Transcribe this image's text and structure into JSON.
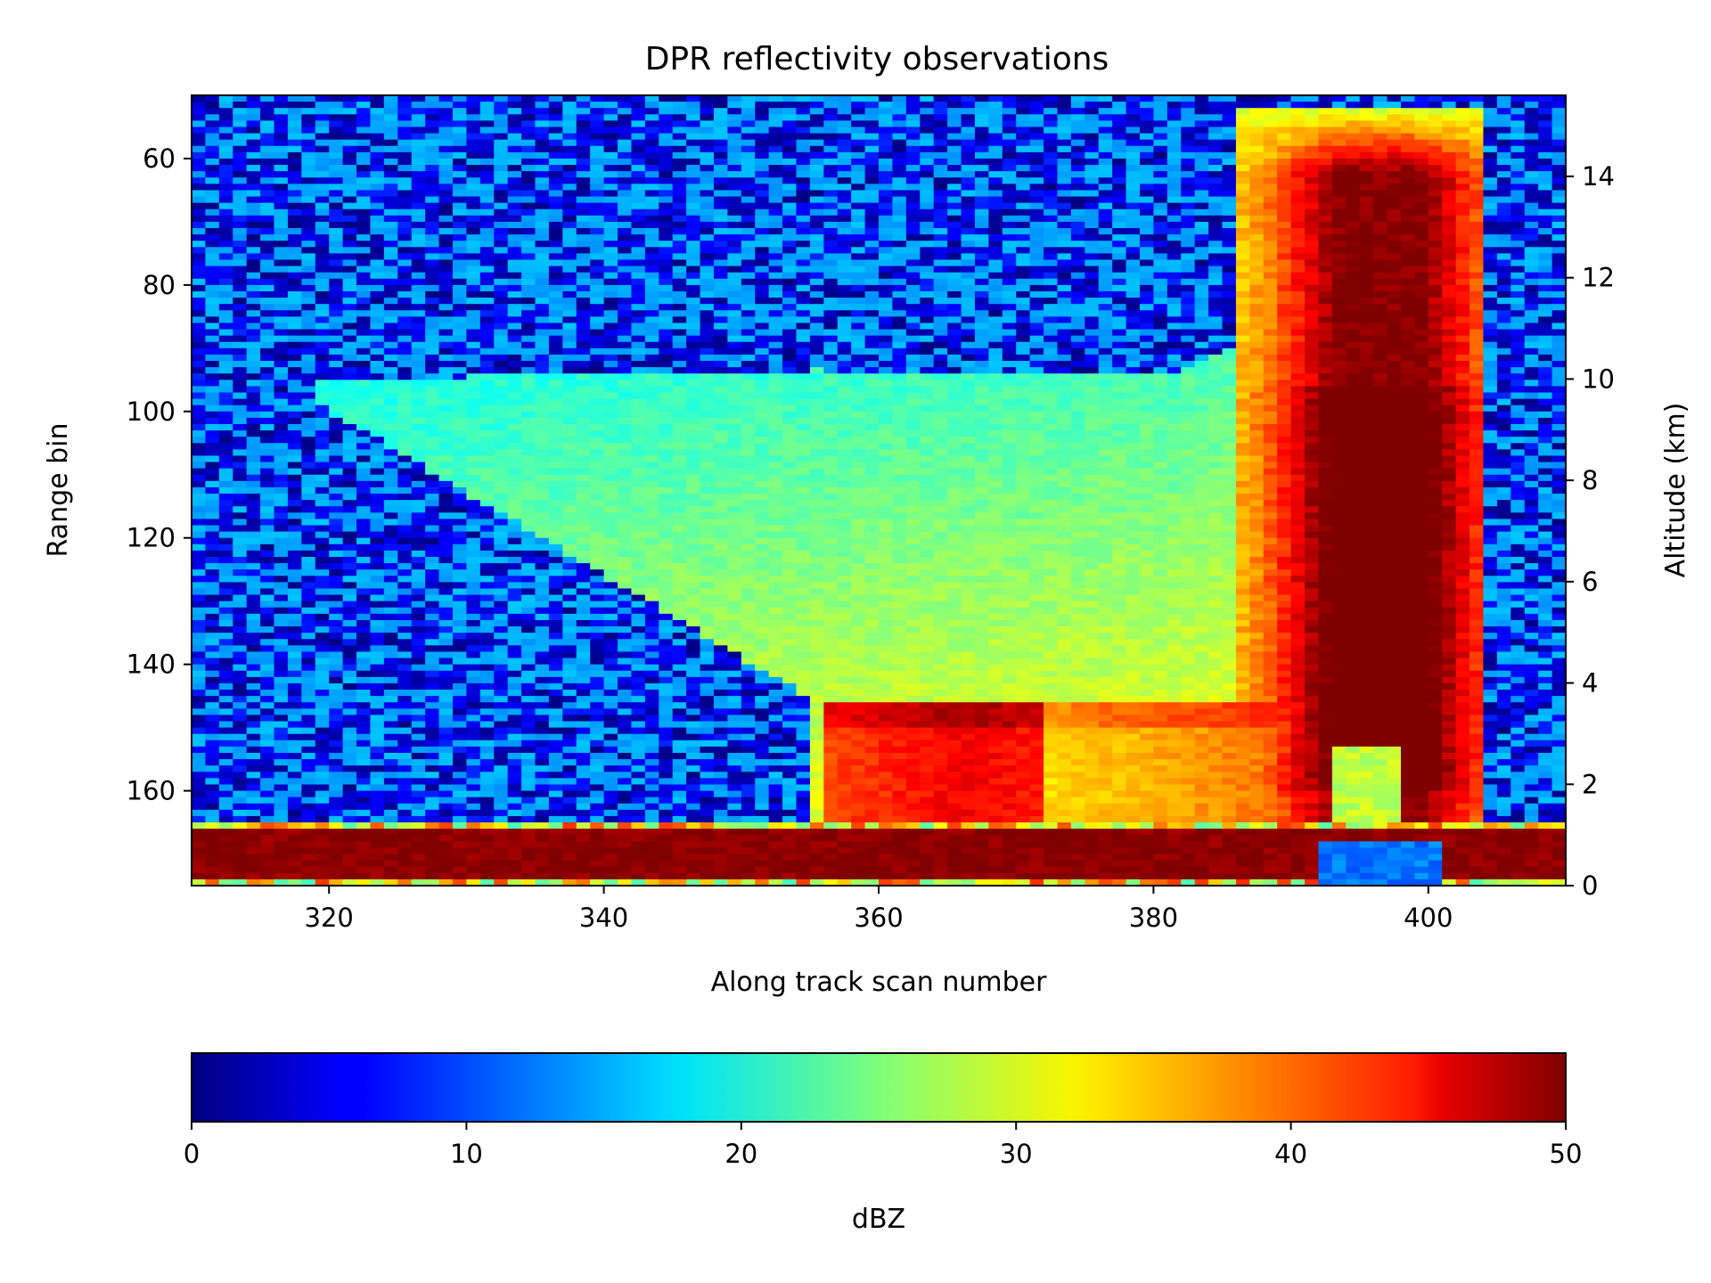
{
  "chart_data": {
    "type": "heatmap",
    "title": "DPR reflectivity observations",
    "xlabel": "Along track scan number",
    "ylabel": "Range bin",
    "y2label": "Altitude (km)",
    "xlim": [
      310,
      410
    ],
    "ylim": [
      175,
      50
    ],
    "y2lim": [
      0,
      15.6
    ],
    "x_ticks": [
      {
        "value": 320,
        "label": "320"
      },
      {
        "value": 340,
        "label": "340"
      },
      {
        "value": 360,
        "label": "360"
      },
      {
        "value": 380,
        "label": "380"
      },
      {
        "value": 400,
        "label": "400"
      }
    ],
    "y_ticks": [
      {
        "value": 60,
        "label": "60"
      },
      {
        "value": 80,
        "label": "80"
      },
      {
        "value": 100,
        "label": "100"
      },
      {
        "value": 120,
        "label": "120"
      },
      {
        "value": 140,
        "label": "140"
      },
      {
        "value": 160,
        "label": "160"
      }
    ],
    "y2_ticks": [
      {
        "value": 0,
        "label": "0"
      },
      {
        "value": 2,
        "label": "2"
      },
      {
        "value": 4,
        "label": "4"
      },
      {
        "value": 6,
        "label": "6"
      },
      {
        "value": 8,
        "label": "8"
      },
      {
        "value": 10,
        "label": "10"
      },
      {
        "value": 12,
        "label": "12"
      },
      {
        "value": 14,
        "label": "14"
      }
    ],
    "colormap": "jet",
    "colorbar": {
      "label": "dBZ",
      "range": [
        0,
        50
      ],
      "orientation": "horizontal",
      "ticks": [
        {
          "value": 0,
          "label": "0"
        },
        {
          "value": 10,
          "label": "10"
        },
        {
          "value": 20,
          "label": "20"
        },
        {
          "value": 30,
          "label": "30"
        },
        {
          "value": 40,
          "label": "40"
        },
        {
          "value": 50,
          "label": "50"
        }
      ]
    },
    "features": [
      {
        "x": [
          320,
          388
        ],
        "range_bin": [
          92,
          147
        ],
        "dbz": [
          20,
          30
        ]
      },
      {
        "x": [
          355,
          384
        ],
        "range_bin": [
          146,
          166
        ],
        "dbz": [
          34,
          46
        ]
      },
      {
        "x": [
          388,
          402
        ],
        "range_bin": [
          55,
          166
        ],
        "dbz": [
          35,
          50
        ]
      },
      {
        "x": [
          310,
          410
        ],
        "range_bin": [
          165,
          175
        ],
        "dbz": [
          45,
          50
        ]
      }
    ],
    "background_dbz": [
      0,
      15
    ]
  }
}
